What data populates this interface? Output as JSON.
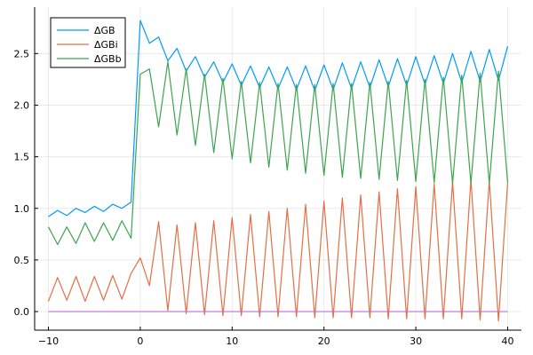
{
  "chart_data": {
    "type": "line",
    "title": "",
    "xlabel": "",
    "ylabel": "",
    "xlim": [
      -11.5,
      41.5
    ],
    "ylim": [
      -0.18,
      2.95
    ],
    "xticks": [
      -10,
      0,
      10,
      20,
      30,
      40
    ],
    "xtick_labels": [
      "−10",
      "0",
      "10",
      "20",
      "30",
      "40"
    ],
    "yticks": [
      0.0,
      0.5,
      1.0,
      1.5,
      2.0,
      2.5
    ],
    "ytick_labels": [
      "0.0",
      "0.5",
      "1.0",
      "1.5",
      "2.0",
      "2.5"
    ],
    "grid": true,
    "legend_position": "top-left",
    "x": [
      -10,
      -9,
      -8,
      -7,
      -6,
      -5,
      -4,
      -3,
      -2,
      -1,
      0,
      1,
      2,
      3,
      4,
      5,
      6,
      7,
      8,
      9,
      10,
      11,
      12,
      13,
      14,
      15,
      16,
      17,
      18,
      19,
      20,
      21,
      22,
      23,
      24,
      25,
      26,
      27,
      28,
      29,
      30,
      31,
      32,
      33,
      34,
      35,
      36,
      37,
      38,
      39,
      40
    ],
    "series": [
      {
        "name": "ΔGB",
        "color": "#009AFA",
        "values": [
          0.92,
          0.98,
          0.93,
          1.0,
          0.96,
          1.02,
          0.97,
          1.04,
          1.0,
          1.06,
          2.82,
          2.6,
          2.66,
          2.43,
          2.55,
          2.33,
          2.47,
          2.27,
          2.42,
          2.22,
          2.4,
          2.19,
          2.38,
          2.17,
          2.37,
          2.16,
          2.37,
          2.15,
          2.38,
          2.14,
          2.39,
          2.15,
          2.41,
          2.16,
          2.42,
          2.17,
          2.44,
          2.18,
          2.45,
          2.19,
          2.47,
          2.2,
          2.48,
          2.21,
          2.5,
          2.22,
          2.52,
          2.23,
          2.54,
          2.24,
          2.57
        ]
      },
      {
        "name": "ΔGBi",
        "color": "#E36F47",
        "values": [
          0.1,
          0.33,
          0.11,
          0.34,
          0.1,
          0.34,
          0.11,
          0.35,
          0.12,
          0.37,
          0.52,
          0.25,
          0.87,
          0.01,
          0.84,
          -0.02,
          0.86,
          -0.03,
          0.88,
          -0.04,
          0.91,
          -0.04,
          0.94,
          -0.05,
          0.97,
          -0.05,
          1.0,
          -0.05,
          1.04,
          -0.06,
          1.07,
          -0.06,
          1.1,
          -0.06,
          1.13,
          -0.06,
          1.16,
          -0.07,
          1.19,
          -0.07,
          1.21,
          -0.07,
          1.24,
          -0.07,
          1.26,
          -0.07,
          1.28,
          -0.08,
          1.27,
          -0.09,
          1.25
        ]
      },
      {
        "name": "ΔGBb",
        "color": "#3EA44E",
        "values": [
          0.82,
          0.65,
          0.82,
          0.66,
          0.86,
          0.68,
          0.86,
          0.69,
          0.88,
          0.71,
          2.3,
          2.35,
          1.79,
          2.42,
          1.71,
          2.35,
          1.61,
          2.3,
          1.54,
          2.26,
          1.48,
          2.23,
          1.44,
          2.22,
          1.4,
          2.21,
          1.37,
          2.2,
          1.34,
          2.2,
          1.32,
          2.21,
          1.3,
          2.21,
          1.29,
          2.22,
          1.28,
          2.23,
          1.27,
          2.24,
          1.26,
          2.25,
          1.25,
          2.27,
          1.24,
          2.29,
          1.24,
          2.31,
          1.24,
          2.33,
          1.25
        ]
      },
      {
        "name": "",
        "color": "#C271D2",
        "values": [
          0,
          0,
          0,
          0,
          0,
          0,
          0,
          0,
          0,
          0,
          0,
          0,
          0,
          0,
          0,
          0,
          0,
          0,
          0,
          0,
          0,
          0,
          0,
          0,
          0,
          0,
          0,
          0,
          0,
          0,
          0,
          0,
          0,
          0,
          0,
          0,
          0,
          0,
          0,
          0,
          0,
          0,
          0,
          0,
          0,
          0,
          0,
          0,
          0,
          0,
          0
        ]
      }
    ]
  }
}
